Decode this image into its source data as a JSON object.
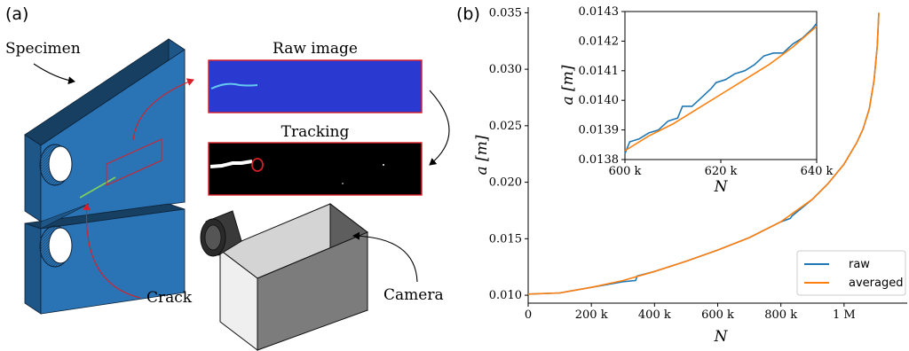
{
  "panel_a": {
    "label": "(a)",
    "specimen_label": "Specimen",
    "raw_image_label": "Raw image",
    "tracking_label": "Tracking",
    "crack_label": "Crack",
    "camera_label": "Camera",
    "colors": {
      "specimen": "#2a74b5",
      "specimen_dark": "#173f61",
      "arrow_red": "#d81f26",
      "raw_bg": "#2a3ad0"
    }
  },
  "panel_b": {
    "label": "(b)",
    "legend": {
      "raw": "raw",
      "averaged": "averaged",
      "position": "lower-right"
    },
    "colors": {
      "raw": "#1f77b4",
      "averaged": "#ff7f0e"
    }
  },
  "chart_data": [
    {
      "type": "line",
      "xlabel": "N",
      "ylabel": "a [m]",
      "xlim": [
        0,
        1200000
      ],
      "ylim": [
        0.0093,
        0.0355
      ],
      "xticks": [
        0,
        200000,
        400000,
        600000,
        800000,
        1000000
      ],
      "xtick_labels": [
        "0",
        "200 k",
        "400 k",
        "600 k",
        "800 k",
        "1 M"
      ],
      "yticks": [
        0.01,
        0.015,
        0.02,
        0.025,
        0.03,
        0.035
      ],
      "ytick_labels": [
        "0.010",
        "0.015",
        "0.020",
        "0.025",
        "0.030",
        "0.035"
      ],
      "grid": false,
      "series": [
        {
          "name": "raw",
          "x": [
            0,
            100000,
            200000,
            300000,
            340000,
            345000,
            400000,
            500000,
            600000,
            700000,
            800000,
            830000,
            835000,
            900000,
            950000,
            1000000,
            1040000,
            1060000,
            1080000,
            1095000,
            1105000,
            1110000
          ],
          "y": [
            0.0101,
            0.0102,
            0.0107,
            0.0112,
            0.0113,
            0.0117,
            0.0121,
            0.013,
            0.014,
            0.0151,
            0.0165,
            0.0168,
            0.017,
            0.0185,
            0.0199,
            0.0216,
            0.0235,
            0.0247,
            0.0265,
            0.029,
            0.032,
            0.035
          ]
        },
        {
          "name": "averaged",
          "x": [
            0,
            100000,
            200000,
            300000,
            400000,
            500000,
            600000,
            700000,
            800000,
            900000,
            950000,
            1000000,
            1040000,
            1060000,
            1080000,
            1095000,
            1105000,
            1110000
          ],
          "y": [
            0.0101,
            0.0102,
            0.0107,
            0.0113,
            0.0121,
            0.013,
            0.014,
            0.0151,
            0.0165,
            0.0185,
            0.0199,
            0.0216,
            0.0235,
            0.0247,
            0.0265,
            0.029,
            0.032,
            0.035
          ]
        }
      ]
    },
    {
      "type": "line",
      "xlabel": "N",
      "ylabel": "a [m]",
      "xlim": [
        600000,
        640000
      ],
      "ylim": [
        0.0138,
        0.0143
      ],
      "xticks": [
        600000,
        620000,
        640000
      ],
      "xtick_labels": [
        "600 k",
        "620 k",
        "640 k"
      ],
      "yticks": [
        0.0138,
        0.0139,
        0.014,
        0.0141,
        0.0142,
        0.0143
      ],
      "ytick_labels": [
        "0.0138",
        "0.0139",
        "0.0140",
        "0.0141",
        "0.0142",
        "0.0143"
      ],
      "grid": false,
      "series": [
        {
          "name": "raw",
          "x": [
            600000,
            601000,
            603000,
            605000,
            607000,
            609000,
            611000,
            612000,
            614000,
            616000,
            618000,
            619000,
            621000,
            623000,
            625000,
            627000,
            629000,
            631000,
            633000,
            635000,
            637000,
            639000,
            640000
          ],
          "y": [
            0.01382,
            0.01386,
            0.01387,
            0.01389,
            0.0139,
            0.01393,
            0.01394,
            0.01398,
            0.01398,
            0.01401,
            0.01404,
            0.01406,
            0.01407,
            0.01409,
            0.0141,
            0.01412,
            0.01415,
            0.01416,
            0.01416,
            0.01419,
            0.01421,
            0.01424,
            0.01426
          ]
        },
        {
          "name": "averaged",
          "x": [
            600000,
            605000,
            610000,
            615000,
            620000,
            625000,
            630000,
            635000,
            640000
          ],
          "y": [
            0.01383,
            0.01388,
            0.01392,
            0.01397,
            0.01402,
            0.01407,
            0.01412,
            0.01418,
            0.01425
          ]
        }
      ]
    }
  ]
}
